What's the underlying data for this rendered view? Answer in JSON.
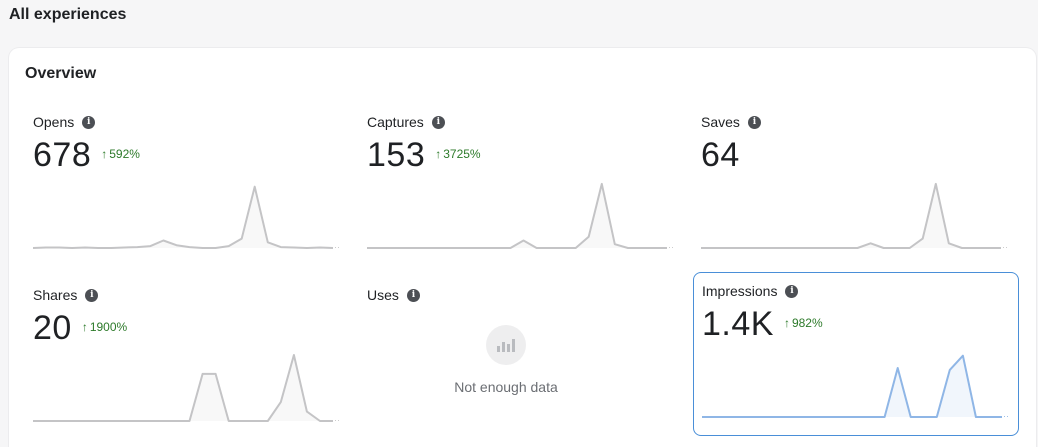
{
  "page": {
    "title": "All experiences"
  },
  "overview": {
    "title": "Overview",
    "metrics": [
      {
        "label": "Opens",
        "value": "678",
        "change": "592%",
        "has_change": true,
        "spark": [
          0,
          0.5,
          0.5,
          0,
          0.5,
          0,
          0,
          0.5,
          1,
          2,
          8,
          3,
          1,
          0,
          0,
          2,
          10,
          65,
          6,
          1,
          0.5,
          0,
          0.5,
          0
        ]
      },
      {
        "label": "Captures",
        "value": "153",
        "change": "3725%",
        "has_change": true,
        "spark": [
          0,
          0,
          0,
          0,
          0,
          0,
          0,
          0,
          0,
          0,
          0,
          0,
          8,
          0,
          0,
          0,
          0,
          12,
          68,
          4,
          0,
          0,
          0,
          0
        ]
      },
      {
        "label": "Saves",
        "value": "64",
        "change": "",
        "has_change": false,
        "spark": [
          0,
          0,
          0,
          0,
          0,
          0,
          0,
          0,
          0,
          0,
          0,
          0,
          0,
          5,
          0,
          0,
          0,
          10,
          68,
          5,
          0,
          0,
          0,
          0
        ]
      },
      {
        "label": "Shares",
        "value": "20",
        "change": "1900%",
        "has_change": true,
        "spark": [
          0,
          0,
          0,
          0,
          0,
          0,
          0,
          0,
          0,
          0,
          0,
          0,
          0,
          50,
          50,
          0,
          0,
          0,
          0,
          20,
          70,
          10,
          0,
          0
        ]
      },
      {
        "label": "Uses",
        "value": "",
        "change": "",
        "has_change": false,
        "no_data": "Not enough data"
      },
      {
        "label": "Impressions",
        "value": "1.4K",
        "change": "982%",
        "has_change": true,
        "spark": [
          0,
          0,
          0,
          0,
          0,
          0,
          0,
          0,
          0,
          0,
          0,
          0,
          0,
          0,
          0,
          52,
          0,
          0,
          0,
          50,
          65,
          0,
          0,
          0
        ]
      }
    ]
  },
  "colors": {
    "accent_border": "#4a8fd8",
    "spark_gray": "#c4c4c6",
    "spark_blue": "#8fb6e6",
    "positive": "#2d7a2a"
  },
  "icons": {
    "info": "info-icon",
    "up": "arrow-up-icon",
    "nodata": "bar-chart-icon"
  }
}
